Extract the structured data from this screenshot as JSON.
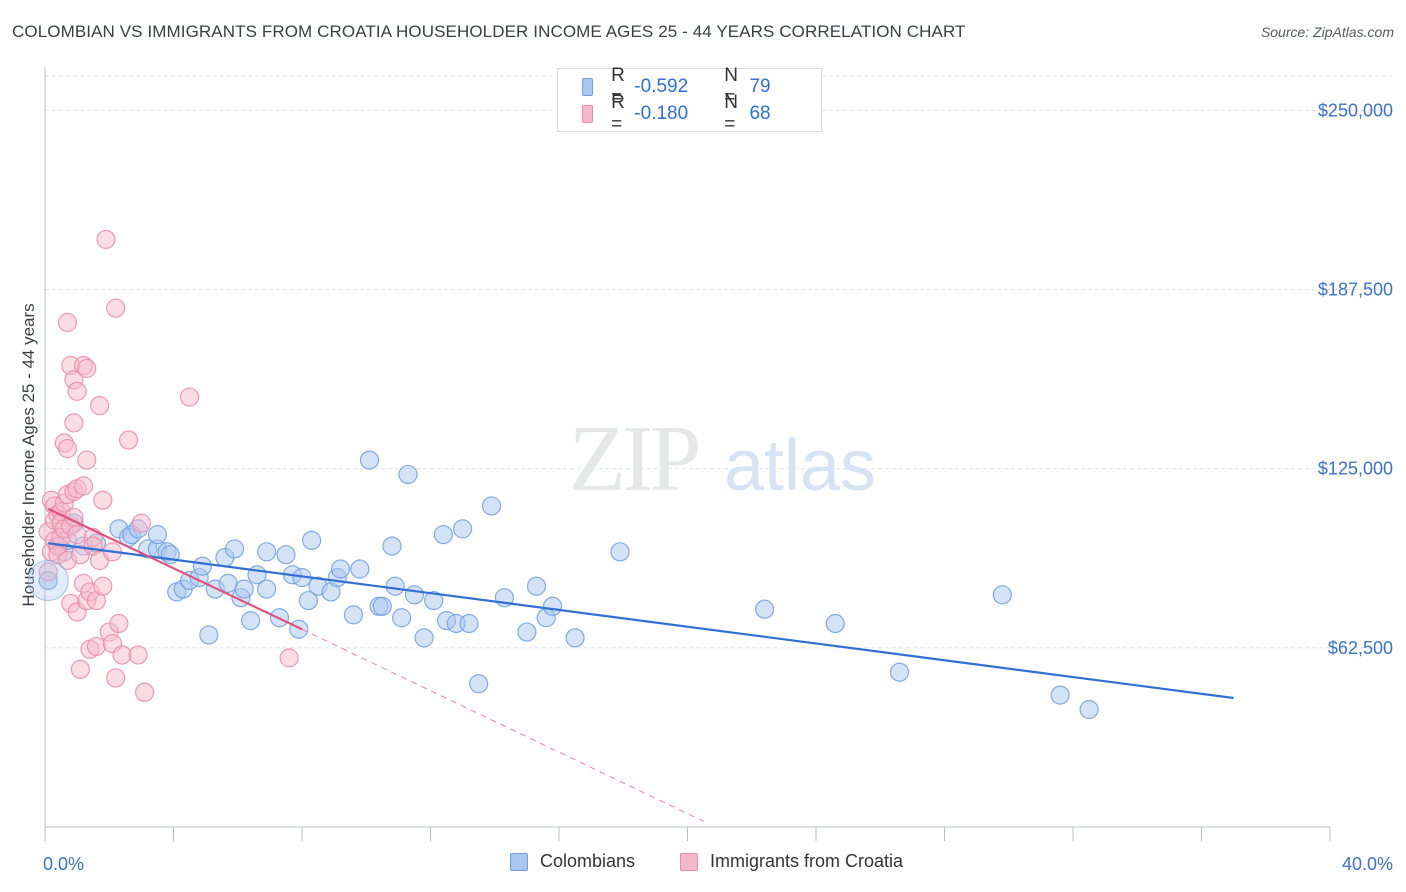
{
  "title": "COLOMBIAN VS IMMIGRANTS FROM CROATIA HOUSEHOLDER INCOME AGES 25 - 44 YEARS CORRELATION CHART",
  "source": "Source: ZipAtlas.com",
  "watermark": {
    "zip": "ZIP",
    "atlas": "atlas"
  },
  "legend": {
    "rows": [
      {
        "r_label": "R =",
        "r_value": "-0.592",
        "n_label": "N =",
        "n_value": "79"
      },
      {
        "r_label": "R =",
        "r_value": "-0.180",
        "n_label": "N =",
        "n_value": "68"
      }
    ]
  },
  "bottom_legend": {
    "series1": "Colombians",
    "series2": "Immigrants from Croatia"
  },
  "colors": {
    "blue_fill": "#a9c6ee",
    "blue_stroke": "#6f9fe0",
    "blue_line": "#2f6fd6",
    "pink_fill": "#f6b9cc",
    "pink_stroke": "#ec8aa8",
    "pink_line": "#e0527e",
    "axis_text": "#3b73c8",
    "grid": "#dfe2e6"
  },
  "chart_data": {
    "type": "scatter",
    "title": "COLOMBIAN VS IMMIGRANTS FROM CROATIA HOUSEHOLDER INCOME AGES 25 - 44 YEARS CORRELATION CHART",
    "xlabel": "",
    "ylabel": "Householder Income Ages 25 - 44 years",
    "xlim": [
      0,
      40
    ],
    "ylim": [
      0,
      262000
    ],
    "x_tick_labels": [
      "0.0%",
      "40.0%"
    ],
    "y_ticks": [
      62500,
      125000,
      187500,
      250000
    ],
    "y_tick_labels": [
      "$62,500",
      "$125,000",
      "$187,500",
      "$250,000"
    ],
    "grid": true,
    "legend_position": "top-center",
    "series": [
      {
        "name": "Colombians",
        "r": -0.592,
        "n": 79,
        "trend": {
          "x": [
            0.1,
            37.0
          ],
          "y": [
            99000,
            45000
          ]
        },
        "points": [
          [
            0.1,
            86000
          ],
          [
            0.4,
            98000
          ],
          [
            0.6,
            96000
          ],
          [
            0.7,
            100000
          ],
          [
            0.9,
            106000
          ],
          [
            1.2,
            98000
          ],
          [
            1.6,
            99000
          ],
          [
            2.3,
            104000
          ],
          [
            2.6,
            101000
          ],
          [
            2.7,
            102000
          ],
          [
            2.9,
            104000
          ],
          [
            3.2,
            97000
          ],
          [
            3.5,
            97000
          ],
          [
            3.5,
            102000
          ],
          [
            3.8,
            96000
          ],
          [
            3.9,
            95000
          ],
          [
            4.1,
            82000
          ],
          [
            4.3,
            83000
          ],
          [
            4.5,
            86000
          ],
          [
            4.8,
            87000
          ],
          [
            4.9,
            91000
          ],
          [
            5.1,
            67000
          ],
          [
            5.3,
            83000
          ],
          [
            5.6,
            94000
          ],
          [
            5.7,
            85000
          ],
          [
            5.9,
            97000
          ],
          [
            6.1,
            80000
          ],
          [
            6.2,
            83000
          ],
          [
            6.4,
            72000
          ],
          [
            6.6,
            88000
          ],
          [
            6.9,
            83000
          ],
          [
            6.9,
            96000
          ],
          [
            7.3,
            73000
          ],
          [
            7.5,
            95000
          ],
          [
            7.7,
            88000
          ],
          [
            7.9,
            69000
          ],
          [
            8.0,
            87000
          ],
          [
            8.2,
            79000
          ],
          [
            8.3,
            100000
          ],
          [
            8.5,
            84000
          ],
          [
            8.9,
            82000
          ],
          [
            9.1,
            87000
          ],
          [
            9.2,
            90000
          ],
          [
            9.6,
            74000
          ],
          [
            9.8,
            90000
          ],
          [
            10.1,
            128000
          ],
          [
            10.4,
            77000
          ],
          [
            10.5,
            77000
          ],
          [
            10.8,
            98000
          ],
          [
            10.9,
            84000
          ],
          [
            11.1,
            73000
          ],
          [
            11.3,
            123000
          ],
          [
            11.5,
            81000
          ],
          [
            11.8,
            66000
          ],
          [
            12.1,
            79000
          ],
          [
            12.4,
            102000
          ],
          [
            12.5,
            72000
          ],
          [
            12.8,
            71000
          ],
          [
            13.0,
            104000
          ],
          [
            13.2,
            71000
          ],
          [
            13.5,
            50000
          ],
          [
            13.9,
            112000
          ],
          [
            14.3,
            80000
          ],
          [
            15.0,
            68000
          ],
          [
            15.3,
            84000
          ],
          [
            15.6,
            73000
          ],
          [
            15.8,
            77000
          ],
          [
            16.5,
            66000
          ],
          [
            17.9,
            96000
          ],
          [
            22.4,
            76000
          ],
          [
            24.6,
            71000
          ],
          [
            26.6,
            54000
          ],
          [
            29.8,
            81000
          ],
          [
            31.6,
            46000
          ],
          [
            32.5,
            41000
          ]
        ]
      },
      {
        "name": "Immigrants from Croatia",
        "r": -0.18,
        "n": 68,
        "trend": {
          "x": [
            0.1,
            8.0
          ],
          "y": [
            111000,
            69000
          ]
        },
        "trend_extrapolated": {
          "x": [
            8.0,
            20.5
          ],
          "y": [
            69000,
            2000
          ]
        },
        "points": [
          [
            0.1,
            89000
          ],
          [
            0.1,
            103000
          ],
          [
            0.2,
            114000
          ],
          [
            0.2,
            96000
          ],
          [
            0.3,
            112000
          ],
          [
            0.3,
            107000
          ],
          [
            0.3,
            100000
          ],
          [
            0.4,
            109000
          ],
          [
            0.4,
            98000
          ],
          [
            0.4,
            95000
          ],
          [
            0.5,
            110000
          ],
          [
            0.5,
            106000
          ],
          [
            0.5,
            101000
          ],
          [
            0.6,
            134000
          ],
          [
            0.6,
            113000
          ],
          [
            0.6,
            104000
          ],
          [
            0.7,
            176000
          ],
          [
            0.7,
            132000
          ],
          [
            0.7,
            116000
          ],
          [
            0.7,
            93000
          ],
          [
            0.8,
            161000
          ],
          [
            0.8,
            105000
          ],
          [
            0.8,
            78000
          ],
          [
            0.9,
            141000
          ],
          [
            0.9,
            156000
          ],
          [
            0.9,
            117000
          ],
          [
            0.9,
            108000
          ],
          [
            1.0,
            118000
          ],
          [
            1.0,
            152000
          ],
          [
            1.0,
            102000
          ],
          [
            1.0,
            75000
          ],
          [
            1.1,
            55000
          ],
          [
            1.1,
            95000
          ],
          [
            1.2,
            119000
          ],
          [
            1.2,
            161000
          ],
          [
            1.2,
            85000
          ],
          [
            1.3,
            128000
          ],
          [
            1.3,
            160000
          ],
          [
            1.3,
            79000
          ],
          [
            1.4,
            62000
          ],
          [
            1.4,
            82000
          ],
          [
            1.5,
            101000
          ],
          [
            1.5,
            98000
          ],
          [
            1.6,
            79000
          ],
          [
            1.6,
            63000
          ],
          [
            1.7,
            147000
          ],
          [
            1.7,
            93000
          ],
          [
            1.8,
            114000
          ],
          [
            1.8,
            84000
          ],
          [
            1.9,
            205000
          ],
          [
            2.0,
            68000
          ],
          [
            2.1,
            96000
          ],
          [
            2.1,
            64000
          ],
          [
            2.2,
            181000
          ],
          [
            2.2,
            52000
          ],
          [
            2.3,
            71000
          ],
          [
            2.4,
            60000
          ],
          [
            2.6,
            135000
          ],
          [
            2.9,
            60000
          ],
          [
            3.0,
            106000
          ],
          [
            3.1,
            47000
          ],
          [
            4.5,
            150000
          ],
          [
            7.6,
            59000
          ]
        ]
      }
    ]
  }
}
